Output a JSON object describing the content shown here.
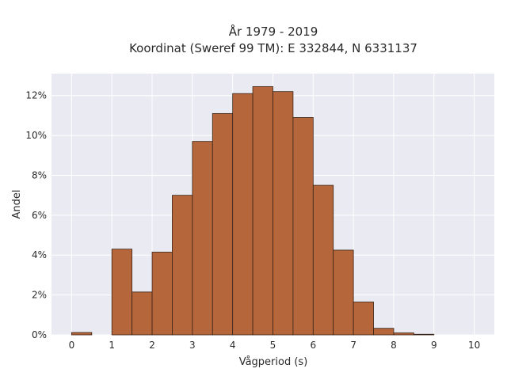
{
  "chart_data": {
    "type": "bar",
    "title_line1": "År 1979 - 2019",
    "title_line2": "Koordinat (Sweref 99 TM): E 332844, N 6331137",
    "xlabel": "Vågperiod (s)",
    "ylabel": "Andel",
    "bin_width": 0.5,
    "bins": [
      {
        "x0": 0.0,
        "value": 0.12
      },
      {
        "x0": 0.5,
        "value": 0.0
      },
      {
        "x0": 1.0,
        "value": 4.3
      },
      {
        "x0": 1.5,
        "value": 2.15
      },
      {
        "x0": 2.0,
        "value": 4.15
      },
      {
        "x0": 2.5,
        "value": 7.0
      },
      {
        "x0": 3.0,
        "value": 9.7
      },
      {
        "x0": 3.5,
        "value": 11.1
      },
      {
        "x0": 4.0,
        "value": 12.1
      },
      {
        "x0": 4.5,
        "value": 12.45
      },
      {
        "x0": 5.0,
        "value": 12.2
      },
      {
        "x0": 5.5,
        "value": 10.9
      },
      {
        "x0": 6.0,
        "value": 7.5
      },
      {
        "x0": 6.5,
        "value": 4.25
      },
      {
        "x0": 7.0,
        "value": 1.65
      },
      {
        "x0": 7.5,
        "value": 0.33
      },
      {
        "x0": 8.0,
        "value": 0.1
      },
      {
        "x0": 8.5,
        "value": 0.03
      }
    ],
    "xlim": [
      -0.5,
      10.5
    ],
    "ylim": [
      0,
      13.1
    ],
    "xticks": [
      0,
      1,
      2,
      3,
      4,
      5,
      6,
      7,
      8,
      9,
      10
    ],
    "yticks": [
      0,
      2,
      4,
      6,
      8,
      10,
      12
    ],
    "ytick_labels": [
      "0%",
      "2%",
      "4%",
      "6%",
      "8%",
      "10%",
      "12%"
    ],
    "grid": true,
    "bar_color": "#b5663b",
    "bar_edge_color": "#3a2417",
    "plot_background": "#eaeaf2",
    "grid_color": "#ffffff"
  }
}
